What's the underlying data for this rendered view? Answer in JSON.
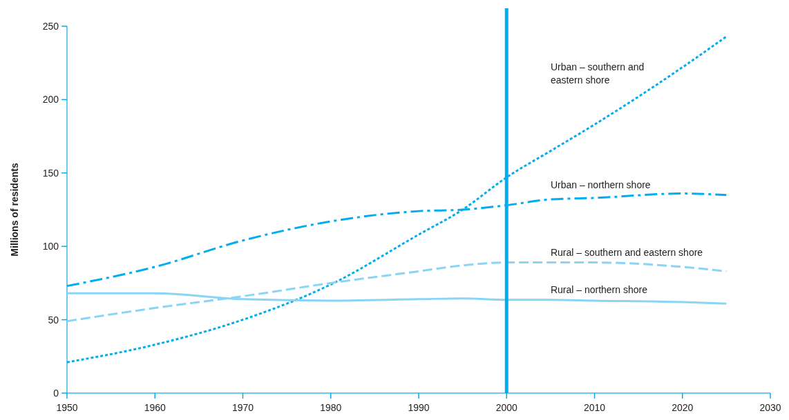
{
  "chart_data": {
    "type": "line",
    "ylabel": "Millions of residents",
    "xlim": [
      1950,
      2030
    ],
    "xticks": [
      1950,
      1960,
      1970,
      1980,
      1990,
      2000,
      2010,
      2020,
      2030
    ],
    "ylim": [
      0,
      250
    ],
    "yticks": [
      0,
      50,
      100,
      150,
      200,
      250
    ],
    "grid": false,
    "legend": false,
    "marker": "none",
    "x": [
      1950,
      1960,
      1970,
      1980,
      1990,
      1995,
      2000,
      2005,
      2010,
      2020,
      2025
    ],
    "series": [
      {
        "name": "Urban – southern and eastern shore",
        "color": "#00aeef",
        "line_style": "dotted",
        "values": [
          21,
          33,
          50,
          74,
          108,
          125,
          147,
          165,
          183,
          222,
          243
        ]
      },
      {
        "name": "Urban – northern shore",
        "color": "#00aeef",
        "line_style": "dashdot",
        "values": [
          73,
          86,
          104,
          117,
          124,
          125,
          128,
          132,
          133,
          136,
          135
        ]
      },
      {
        "name": "Rural – southern and eastern shore",
        "color": "#8ad4f5",
        "line_style": "dashed",
        "values": [
          49,
          58,
          66,
          75,
          83,
          87,
          89,
          89,
          89,
          86,
          83
        ]
      },
      {
        "name": "Rural – northern shore",
        "color": "#8ad4f5",
        "line_style": "solid",
        "values": [
          68,
          68,
          64,
          63,
          64,
          64.5,
          63.5,
          63.5,
          63,
          62,
          61
        ]
      }
    ],
    "ref_lines": [
      {
        "axis": "x",
        "value": 2000,
        "color": "#00aeef",
        "line_style": "solid"
      }
    ]
  }
}
